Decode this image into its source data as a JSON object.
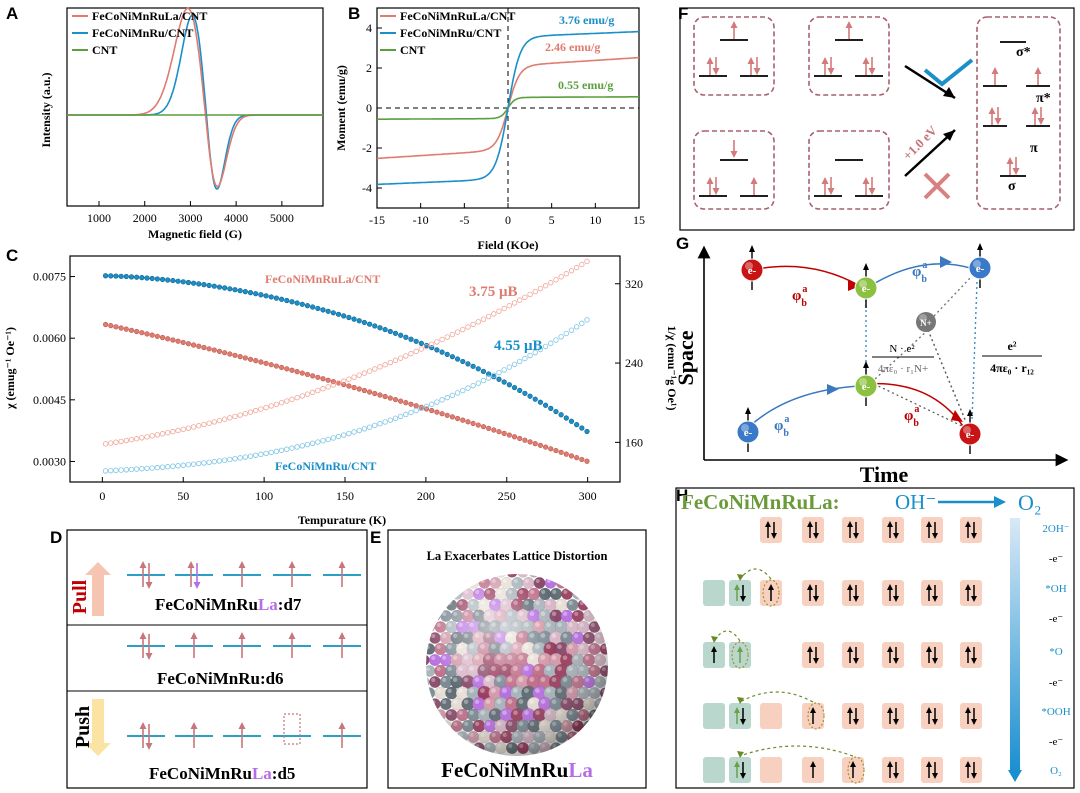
{
  "panels": {
    "A": {
      "letter": "A",
      "legend": [
        "FeCoNiMnRuLa/CNT",
        "FeCoNiMnRu/CNT",
        "CNT"
      ],
      "xlabel": "Magnetic field (G)",
      "ylabel": "Intensity (a.u.)",
      "xticks": [
        "1000",
        "2000",
        "3000",
        "4000",
        "5000"
      ]
    },
    "B": {
      "letter": "B",
      "legend": [
        "FeCoNiMnRuLa/CNT",
        "FeCoNiMnRu/CNT",
        "CNT"
      ],
      "annotations": [
        "3.76 emu/g",
        "2.46 emu/g",
        "0.55 emu/g"
      ],
      "xlabel": "Field (KOe)",
      "ylabel": "Moment (emu/g)",
      "xticks": [
        "-15",
        "-10",
        "-5",
        "0",
        "5",
        "10",
        "15"
      ],
      "yticks": [
        "4",
        "2",
        "0",
        "-2",
        "-4"
      ]
    },
    "C": {
      "letter": "C",
      "label_top": "FeCoNiMnRuLa/CNT",
      "label_bottom": "FeCoNiMnRu/CNT",
      "moment_la": "3.75 μB",
      "moment_ru": "4.55 μB",
      "xlabel": "Tempurature (K)",
      "ylabel": "χ (emug⁻¹ Oe⁻¹)",
      "ylabel2": "1/χ (emu⁻¹g Oe¹)",
      "xticks": [
        "0",
        "50",
        "100",
        "150",
        "200",
        "250",
        "300"
      ],
      "yticks": [
        "0.0075",
        "0.0060",
        "0.0045",
        "0.0030"
      ],
      "y2ticks": [
        "320",
        "240",
        "160"
      ]
    },
    "D": {
      "letter": "D",
      "pull": "Pull",
      "push": "Push",
      "row1_prefix": "FeCoNiMnRu",
      "row1_la": "La",
      "row1_suffix": ":d7",
      "row2": "FeCoNiMnRu:d6",
      "row3_prefix": "FeCoNiMnRu",
      "row3_la": "La",
      "row3_suffix": ":d5"
    },
    "E": {
      "letter": "E",
      "title": "La Exacerbates Lattice Distortion",
      "label_prefix": "FeCoNiMnRu",
      "label_la": "La"
    },
    "F": {
      "letter": "F",
      "energy": "+1.0 eV",
      "orbitals": [
        "σ*",
        "π*",
        "π",
        "σ"
      ]
    },
    "G": {
      "letter": "G",
      "ylabel": "Space",
      "xlabel": "Time",
      "electron": "e-",
      "nucleus": "N+",
      "hop": "φ",
      "hop_sup": "a",
      "hop_sub": "b",
      "term1_num": "N · e²",
      "term1_den": "4πε₀ · r₁N+",
      "term2_num": "e²",
      "term2_den": "4πε₀ · r₁₂"
    },
    "H": {
      "letter": "H",
      "title": "FeCoNiMnRuLa:",
      "reactant": "OH⁻",
      "product": "O₂",
      "steps": [
        "2OH⁻",
        "-e⁻",
        "*OH",
        "-e⁻",
        "*O",
        "-e⁻",
        "*OOH",
        "-e⁻",
        "O₂"
      ]
    }
  },
  "colors": {
    "la": "#e07b6f",
    "ru": "#1a8fc9",
    "cnt": "#5aa03c",
    "arrow": "#c7767b",
    "line": "#2aa0c8",
    "purple": "#b66ee6",
    "darkred": "#c00000",
    "green_title": "#6a9a3a"
  }
}
